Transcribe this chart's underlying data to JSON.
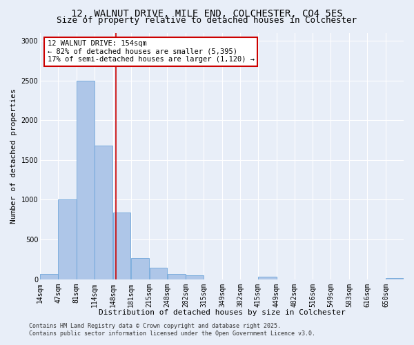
{
  "title_line1": "12, WALNUT DRIVE, MILE END, COLCHESTER, CO4 5ES",
  "title_line2": "Size of property relative to detached houses in Colchester",
  "xlabel": "Distribution of detached houses by size in Colchester",
  "ylabel": "Number of detached properties",
  "bar_edges": [
    14,
    47,
    81,
    114,
    148,
    181,
    215,
    248,
    282,
    315,
    349,
    382,
    415,
    449,
    482,
    516,
    549,
    583,
    616,
    650,
    683
  ],
  "bar_heights": [
    70,
    1000,
    2500,
    1680,
    840,
    270,
    140,
    70,
    50,
    0,
    0,
    0,
    30,
    0,
    0,
    0,
    0,
    0,
    0,
    10
  ],
  "bar_color": "#aec6e8",
  "bar_edgecolor": "#5b9bd5",
  "vline_x": 154,
  "vline_color": "#cc0000",
  "annotation_text": "12 WALNUT DRIVE: 154sqm\n← 82% of detached houses are smaller (5,395)\n17% of semi-detached houses are larger (1,120) →",
  "annotation_box_color": "#ffffff",
  "annotation_box_edgecolor": "#cc0000",
  "ylim": [
    0,
    3100
  ],
  "yticks": [
    0,
    500,
    1000,
    1500,
    2000,
    2500,
    3000
  ],
  "background_color": "#e8eef8",
  "grid_color": "#ffffff",
  "footer_line1": "Contains HM Land Registry data © Crown copyright and database right 2025.",
  "footer_line2": "Contains public sector information licensed under the Open Government Licence v3.0.",
  "title_fontsize": 10,
  "subtitle_fontsize": 9,
  "tick_fontsize": 7,
  "label_fontsize": 8,
  "footer_fontsize": 6
}
